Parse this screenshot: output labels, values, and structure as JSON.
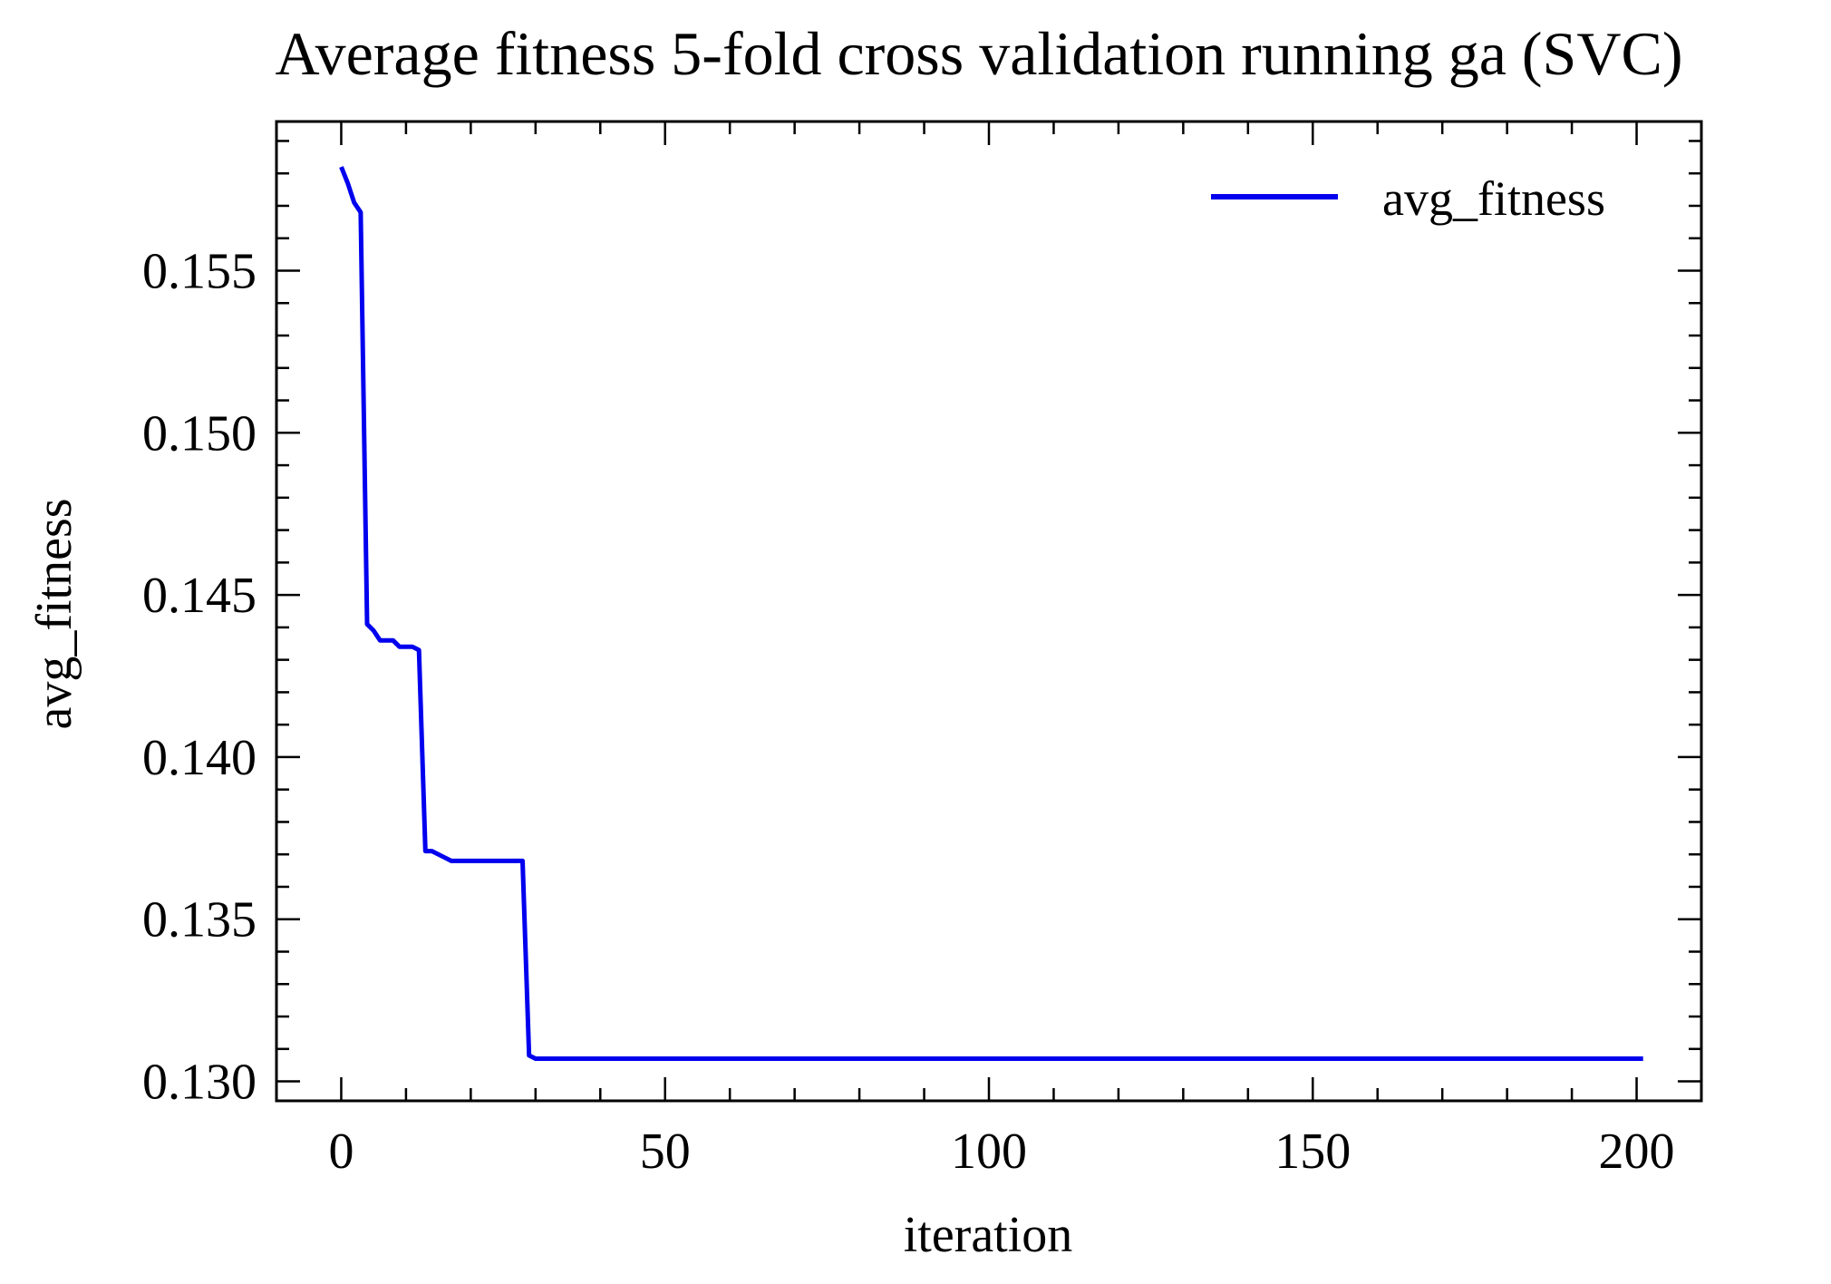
{
  "chart_data": {
    "type": "line",
    "title": "Average fitness 5-fold cross validation running ga (SVC)",
    "xlabel": "iteration",
    "ylabel": "avg_fitness",
    "xlim": [
      -10,
      210
    ],
    "ylim": [
      0.1294,
      0.1596
    ],
    "xticks": [
      0,
      50,
      100,
      150,
      200
    ],
    "xtick_labels": [
      "0",
      "50",
      "100",
      "150",
      "200"
    ],
    "yticks": [
      0.13,
      0.135,
      0.14,
      0.145,
      0.15,
      0.155
    ],
    "ytick_labels": [
      "0.130",
      "0.135",
      "0.140",
      "0.145",
      "0.150",
      "0.155"
    ],
    "grid": false,
    "legend": "top-right",
    "series": [
      {
        "name": "avg_fitness",
        "color": "#0000ee",
        "x": [
          0,
          1,
          2,
          3,
          4,
          5,
          6,
          7,
          8,
          9,
          10,
          11,
          12,
          13,
          14,
          15,
          16,
          17,
          18,
          20,
          22,
          24,
          26,
          28,
          29,
          30,
          32,
          40,
          60,
          80,
          100,
          120,
          140,
          160,
          180,
          200,
          201
        ],
        "y": [
          0.1582,
          0.1577,
          0.1571,
          0.1568,
          0.1441,
          0.1439,
          0.1436,
          0.1436,
          0.1436,
          0.1434,
          0.1434,
          0.1434,
          0.1433,
          0.1371,
          0.1371,
          0.137,
          0.1369,
          0.1368,
          0.1368,
          0.1368,
          0.1368,
          0.1368,
          0.1368,
          0.1368,
          0.1308,
          0.1307,
          0.1307,
          0.1307,
          0.1307,
          0.1307,
          0.1307,
          0.1307,
          0.1307,
          0.1307,
          0.1307,
          0.1307,
          0.1307
        ]
      }
    ]
  }
}
